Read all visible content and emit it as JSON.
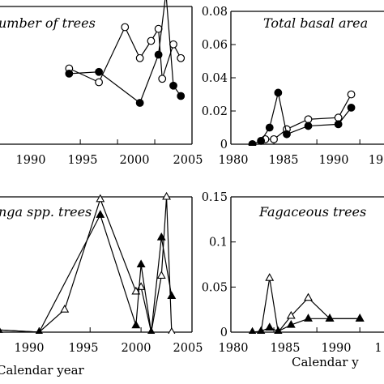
{
  "chart_data": [
    {
      "type": "line",
      "title": "umber of trees",
      "xlabel": "",
      "ylabel": "",
      "xlim": [
        1979,
        2005
      ],
      "ylim": [
        0,
        0.8
      ],
      "xticks": [
        "1990",
        "1995",
        "2000",
        "2005"
      ],
      "yticks": [],
      "grid": false,
      "series": [
        {
          "marker": "open-circle",
          "x": [
            1988.5,
            1992.5,
            1996,
            1998,
            1999.5,
            2000.5,
            2001,
            2002.5,
            2003.5
          ],
          "y": [
            0.44,
            0.36,
            0.68,
            0.5,
            0.6,
            0.67,
            0.38,
            0.58,
            0.5
          ]
        },
        {
          "marker": "filled-circle",
          "x": [
            1988.5,
            1992.5,
            1998,
            2000.5,
            2001.5,
            2002.5,
            2003.5
          ],
          "y": [
            0.41,
            0.42,
            0.24,
            0.52,
            0.88,
            0.34,
            0.28
          ]
        }
      ]
    },
    {
      "type": "line",
      "title": "Total basal area",
      "xlabel": "",
      "ylabel": "",
      "xlim": [
        1980,
        1998
      ],
      "ylim": [
        0,
        0.08
      ],
      "xticks": [
        "1980",
        "1985",
        "1990",
        "19"
      ],
      "yticks": [
        "0",
        "0.02",
        "0.04",
        "0.06",
        "0.08"
      ],
      "grid": false,
      "series": [
        {
          "marker": "open-circle",
          "x": [
            1982.5,
            1984,
            1985,
            1986.5,
            1989,
            1992.5,
            1994
          ],
          "y": [
            0,
            0.003,
            0.003,
            0.009,
            0.015,
            0.016,
            0.03
          ]
        },
        {
          "marker": "filled-circle",
          "x": [
            1982.5,
            1983.5,
            1984.5,
            1985.5,
            1986.5,
            1989,
            1992.5,
            1994
          ],
          "y": [
            0,
            0.002,
            0.01,
            0.031,
            0.006,
            0.011,
            0.012,
            0.022
          ]
        }
      ]
    },
    {
      "type": "line",
      "title": "nga spp. trees",
      "xlabel": "Calendar year",
      "ylabel": "",
      "xlim": [
        1986,
        2005
      ],
      "ylim": [
        0,
        0.6
      ],
      "xticks": [
        "1990",
        "1995",
        "2000",
        "2005"
      ],
      "yticks": [],
      "grid": false,
      "series": [
        {
          "marker": "open-triangle",
          "x": [
            1986,
            1990,
            1992.5,
            1996,
            1999.5,
            2000,
            2001,
            2002,
            2002.5,
            2003
          ],
          "y": [
            0.01,
            0,
            0.1,
            0.59,
            0.18,
            0.2,
            0,
            0.25,
            0.6,
            0
          ]
        },
        {
          "marker": "filled-triangle",
          "x": [
            1986,
            1990,
            1996,
            1999.5,
            2000,
            2001,
            2002,
            2003
          ],
          "y": [
            0.01,
            0,
            0.52,
            0.03,
            0.3,
            0,
            0.42,
            0.16
          ]
        }
      ]
    },
    {
      "type": "line",
      "title": "Fagaceous trees",
      "xlabel": "Calendar y",
      "ylabel": "",
      "xlim": [
        1980,
        1998
      ],
      "ylim": [
        0,
        0.15
      ],
      "xticks": [
        "1980",
        "1985",
        "1990",
        "1"
      ],
      "yticks": [
        "0",
        "0.05",
        "0.1",
        "0.15"
      ],
      "grid": false,
      "series": [
        {
          "marker": "open-triangle",
          "x": [
            1982.5,
            1983.5,
            1984.5,
            1985.5,
            1987,
            1989,
            1991.5,
            1995
          ],
          "y": [
            0,
            0,
            0.06,
            0,
            0.018,
            0.038,
            0.015,
            0.015
          ]
        },
        {
          "marker": "filled-triangle",
          "x": [
            1982.5,
            1983.5,
            1984.5,
            1985.5,
            1987,
            1989,
            1991.5,
            1995
          ],
          "y": [
            0,
            0.001,
            0.005,
            0.001,
            0.008,
            0.015,
            0.015,
            0.015
          ]
        }
      ]
    }
  ]
}
